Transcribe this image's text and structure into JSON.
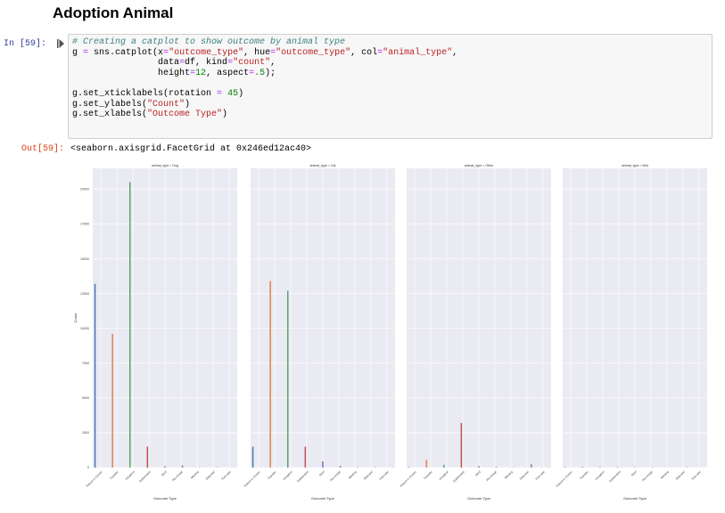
{
  "notebook": {
    "heading": "Adoption Animal",
    "in_prompt": "In [59]:",
    "out_prompt": "Out[59]:",
    "code_lines": [
      [
        {
          "t": "# Creating a catplot to show outcome by animal type",
          "c": "com"
        }
      ],
      [
        {
          "t": "g "
        },
        {
          "t": "=",
          "c": "op"
        },
        {
          "t": " sns.catplot(x"
        },
        {
          "t": "=",
          "c": "op"
        },
        {
          "t": "\"outcome_type\"",
          "c": "str"
        },
        {
          "t": ", hue"
        },
        {
          "t": "=",
          "c": "op"
        },
        {
          "t": "\"outcome_type\"",
          "c": "str"
        },
        {
          "t": ", col"
        },
        {
          "t": "=",
          "c": "op"
        },
        {
          "t": "\"animal_type\"",
          "c": "str"
        },
        {
          "t": ","
        }
      ],
      [
        {
          "t": "                data"
        },
        {
          "t": "=",
          "c": "op"
        },
        {
          "t": "df, kind"
        },
        {
          "t": "=",
          "c": "op"
        },
        {
          "t": "\"count\"",
          "c": "str"
        },
        {
          "t": ","
        }
      ],
      [
        {
          "t": "                height"
        },
        {
          "t": "=",
          "c": "op"
        },
        {
          "t": "12",
          "c": "num"
        },
        {
          "t": ", aspect"
        },
        {
          "t": "=",
          "c": "op"
        },
        {
          "t": ".5",
          "c": "num"
        },
        {
          "t": ");"
        }
      ],
      [
        {
          "t": ""
        }
      ],
      [
        {
          "t": "g.set_xticklabels(rotation "
        },
        {
          "t": "=",
          "c": "op"
        },
        {
          "t": " "
        },
        {
          "t": "45",
          "c": "num"
        },
        {
          "t": ")"
        }
      ],
      [
        {
          "t": "g.set_ylabels("
        },
        {
          "t": "\"Count\"",
          "c": "str"
        },
        {
          "t": ")"
        }
      ],
      [
        {
          "t": "g.set_xlabels("
        },
        {
          "t": "\"Outcome Type\"",
          "c": "str"
        },
        {
          "t": ")"
        }
      ]
    ],
    "output_text": "<seaborn.axisgrid.FacetGrid at 0x246ed12ac40>"
  },
  "chart_data": {
    "type": "bar",
    "categories": [
      "Return to Owner",
      "Transfer",
      "Adoption",
      "Euthanasia",
      "Died",
      "Rto-Adopt",
      "Missing",
      "Disposal",
      "Relocate"
    ],
    "colors": [
      "#4c72b0",
      "#dd8452",
      "#55a868",
      "#c44e52",
      "#8172b3",
      "#937860",
      "#da8bc3",
      "#8c8c8c",
      "#ccb974"
    ],
    "ylabel": "Count",
    "xlabel": "Outcome Type",
    "yticks": [
      0,
      2500,
      5000,
      7500,
      10000,
      12500,
      15000,
      17500,
      20000
    ],
    "ylim": [
      0,
      21500
    ],
    "grid": true,
    "facets": [
      {
        "title": "animal_type = Dog",
        "values": [
          13200,
          9600,
          20500,
          1500,
          100,
          150,
          30,
          20,
          5
        ]
      },
      {
        "title": "animal_type = Cat",
        "values": [
          1500,
          13400,
          12700,
          1500,
          450,
          120,
          40,
          30,
          5
        ]
      },
      {
        "title": "animal_type = Other",
        "values": [
          30,
          550,
          200,
          3200,
          100,
          40,
          5,
          250,
          5
        ]
      },
      {
        "title": "animal_type = Bird",
        "values": [
          10,
          60,
          40,
          30,
          10,
          5,
          0,
          5,
          0
        ]
      }
    ]
  }
}
